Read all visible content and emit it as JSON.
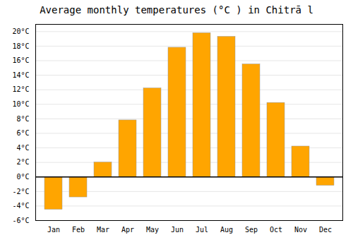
{
  "chart_data": {
    "type": "bar",
    "title": "Average monthly temperatures (°C ) in Chitrā l",
    "categories": [
      "Jan",
      "Feb",
      "Mar",
      "Apr",
      "May",
      "Jun",
      "Jul",
      "Aug",
      "Sep",
      "Oct",
      "Nov",
      "Dec"
    ],
    "values": [
      -4.5,
      -2.8,
      2.0,
      7.8,
      12.2,
      17.8,
      19.8,
      19.3,
      15.5,
      10.2,
      4.2,
      -1.2
    ],
    "color": "#FFA500",
    "ylim": [
      -6,
      21
    ],
    "yticks": [
      {
        "value": -6,
        "label": "-6°C"
      },
      {
        "value": -4,
        "label": "-4°C"
      },
      {
        "value": -2,
        "label": "-2°C"
      },
      {
        "value": 0,
        "label": "0°C"
      },
      {
        "value": 2,
        "label": "2°C"
      },
      {
        "value": 4,
        "label": "4°C"
      },
      {
        "value": 6,
        "label": "6°C"
      },
      {
        "value": 8,
        "label": "8°C"
      },
      {
        "value": 10,
        "label": "10°C"
      },
      {
        "value": 12,
        "label": "12°C"
      },
      {
        "value": 14,
        "label": "14°C"
      },
      {
        "value": 16,
        "label": "16°C"
      },
      {
        "value": 18,
        "label": "18°C"
      },
      {
        "value": 20,
        "label": "20°C"
      }
    ],
    "grid": true
  }
}
